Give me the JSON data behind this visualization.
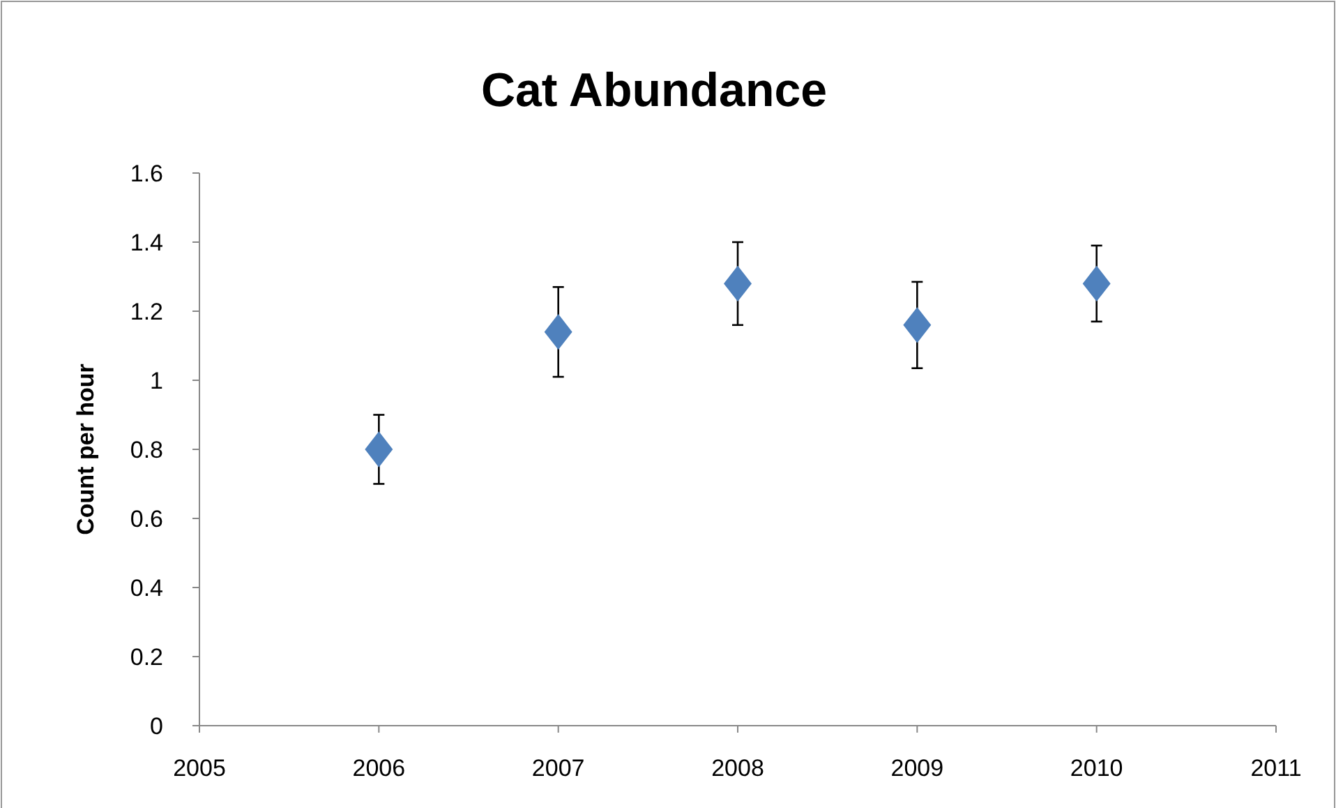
{
  "chart_data": {
    "type": "scatter",
    "title": "Cat Abundance",
    "ylabel": "Count per hour",
    "x": [
      2006,
      2007,
      2008,
      2009,
      2010
    ],
    "values": [
      0.8,
      1.14,
      1.28,
      1.16,
      1.28
    ],
    "errors": [
      0.1,
      0.13,
      0.12,
      0.125,
      0.11
    ],
    "color": "#4f81bd",
    "marker": "diamond",
    "xlim": [
      2005,
      2011
    ],
    "xticks": [
      2005,
      2006,
      2007,
      2008,
      2009,
      2010,
      2011
    ],
    "ylim": [
      0,
      1.6
    ],
    "yticks": [
      0,
      0.2,
      0.4,
      0.6,
      0.8,
      1,
      1.2,
      1.4,
      1.6
    ],
    "grid": false
  }
}
